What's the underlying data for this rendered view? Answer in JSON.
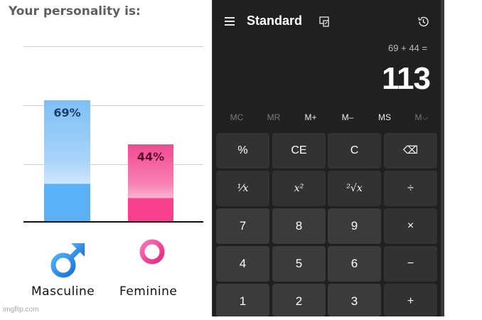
{
  "quiz": {
    "title": "Your personality is:",
    "watermark": "imgflip.com"
  },
  "chart_data": {
    "type": "bar",
    "categories": [
      "Masculine",
      "Feminine"
    ],
    "values": [
      69,
      44
    ],
    "data_labels": [
      "69%",
      "44%"
    ],
    "ylim": [
      0,
      100
    ],
    "grid": true,
    "colors": [
      "#5ab1f6",
      "#f7408e"
    ]
  },
  "calculator": {
    "mode_title": "Standard",
    "expression": "69 + 44 =",
    "result": "113",
    "memory": [
      {
        "label": "MC",
        "enabled": false
      },
      {
        "label": "MR",
        "enabled": false
      },
      {
        "label": "M+",
        "enabled": true
      },
      {
        "label": "M–",
        "enabled": true
      },
      {
        "label": "MS",
        "enabled": true
      },
      {
        "label": "M⌵",
        "enabled": false
      }
    ],
    "keys": [
      [
        "%",
        "CE",
        "C",
        "⌫"
      ],
      [
        "¹⁄x",
        "x²",
        "²√x",
        "÷"
      ],
      [
        "7",
        "8",
        "9",
        "×"
      ],
      [
        "4",
        "5",
        "6",
        "−"
      ],
      [
        "1",
        "2",
        "3",
        "+"
      ]
    ],
    "colors": {
      "background": "#202020",
      "key": "#3b3b3b",
      "key_op": "#323232"
    },
    "icons": {
      "menu": "hamburger-icon",
      "keep_on_top": "keep-on-top-icon",
      "history": "history-icon",
      "backspace": "backspace-icon"
    }
  }
}
